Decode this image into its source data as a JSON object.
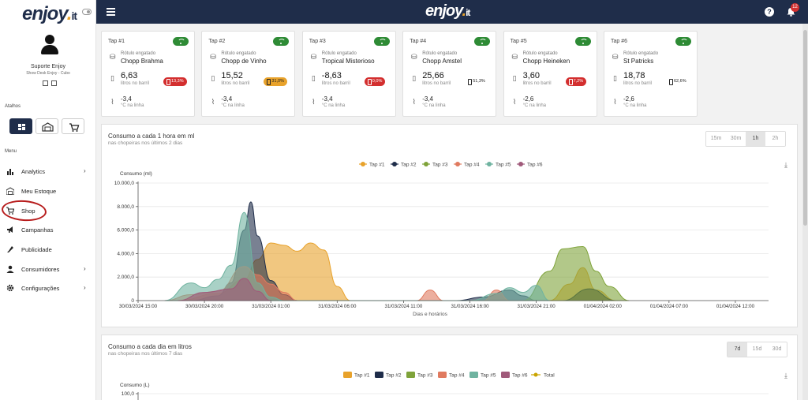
{
  "brand": {
    "logo": "enjoy",
    "logo_suffix": "it"
  },
  "sidebar": {
    "user_name": "Suporte Enjoy",
    "user_subtitle": "Show Desk Enjoy - Cubo",
    "shortcuts_title": "Atalhos",
    "menu_title": "Menu",
    "items": [
      {
        "label": "Analytics",
        "icon": "bar-chart-icon",
        "has_arrow": true
      },
      {
        "label": "Meu Estoque",
        "icon": "warehouse-icon",
        "has_arrow": false
      },
      {
        "label": "Shop",
        "icon": "cart-icon",
        "has_arrow": false
      },
      {
        "label": "Campanhas",
        "icon": "megaphone-icon",
        "has_arrow": false
      },
      {
        "label": "Publicidade",
        "icon": "rocket-icon",
        "has_arrow": false
      },
      {
        "label": "Consumidores",
        "icon": "person-icon",
        "has_arrow": true
      },
      {
        "label": "Configurações",
        "icon": "gear-icon",
        "has_arrow": true
      }
    ]
  },
  "topbar": {
    "notification_count": "12",
    "help_label": "?"
  },
  "taps": [
    {
      "title": "Tap #1",
      "rotulo_label": "Rótulo engatado",
      "beer": "Chopp Brahma",
      "barrel": "6,63",
      "barrel_unit": "litros no barril",
      "pct": "13,3%",
      "pct_style": "red",
      "temp": "-3,4",
      "temp_unit": "°C na linha"
    },
    {
      "title": "Tap #2",
      "rotulo_label": "Rótulo engatado",
      "beer": "Chopp de Vinho",
      "barrel": "15,52",
      "barrel_unit": "litros no barril",
      "pct": "31,0%",
      "pct_style": "orange",
      "temp": "-3,4",
      "temp_unit": "°C na linha"
    },
    {
      "title": "Tap #3",
      "rotulo_label": "Rótulo engatado",
      "beer": "Tropical Misterioso",
      "barrel": "-8,63",
      "barrel_unit": "litros no barril",
      "pct": "0,0%",
      "pct_style": "red",
      "temp": "-3,4",
      "temp_unit": "°C na linha"
    },
    {
      "title": "Tap #4",
      "rotulo_label": "Rótulo engatado",
      "beer": "Chopp Amstel",
      "barrel": "25,66",
      "barrel_unit": "litros no barril",
      "pct": "51,3%",
      "pct_style": "plain",
      "temp": "-3,4",
      "temp_unit": "°C na linha"
    },
    {
      "title": "Tap #5",
      "rotulo_label": "Rótulo engatado",
      "beer": "Chopp Heineken",
      "barrel": "3,60",
      "barrel_unit": "litros no barril",
      "pct": "7,2%",
      "pct_style": "red",
      "temp": "-2,6",
      "temp_unit": "°C na linha"
    },
    {
      "title": "Tap #6",
      "rotulo_label": "Rótulo engatado",
      "beer": "St Patricks",
      "barrel": "18,78",
      "barrel_unit": "litros no barril",
      "pct": "62,6%",
      "pct_style": "plain",
      "temp": "-2,6",
      "temp_unit": "°C na linha"
    }
  ],
  "hourly_card": {
    "title": "Consumo a cada 1 hora em ml",
    "subtitle": "nas chopeiras nos últimos 2 dias",
    "ranges": [
      "15m",
      "30m",
      "1h",
      "2h"
    ],
    "active_range": "1h"
  },
  "daily_card": {
    "title": "Consumo a cada dia em litros",
    "subtitle": "nas chopeiras nos últimos 7 dias",
    "ranges": [
      "7d",
      "15d",
      "30d"
    ],
    "active_range": "7d"
  },
  "chart_data": [
    {
      "type": "area",
      "ylabel": "Consumo (ml)",
      "xlabel": "Dias e horários",
      "ylim": [
        0,
        10000
      ],
      "yticks": [
        "0",
        "2.000,0",
        "4.000,0",
        "6.000,0",
        "8.000,0",
        "10.000,0"
      ],
      "xticks": [
        "30/03/2024 15:00",
        "30/03/2024 20:00",
        "31/03/2024 01:00",
        "31/03/2024 06:00",
        "31/03/2024 11:00",
        "31/03/2024 16:00",
        "31/03/2024 21:00",
        "01/04/2024 02:00",
        "01/04/2024 07:00",
        "01/04/2024 12:00"
      ],
      "x_hours": [
        15,
        20,
        25,
        30,
        35,
        40,
        45,
        50,
        55,
        60
      ],
      "legend_position": "top-center",
      "grid": true,
      "series": [
        {
          "name": "Tap #1",
          "color": "#e8a22b",
          "points": [
            [
              18,
              0
            ],
            [
              21,
              600
            ],
            [
              23,
              1800
            ],
            [
              24,
              3500
            ],
            [
              25,
              4900
            ],
            [
              26,
              4700
            ],
            [
              27,
              4200
            ],
            [
              28,
              4900
            ],
            [
              29,
              4300
            ],
            [
              30,
              1200
            ],
            [
              31,
              0
            ],
            [
              46,
              0
            ],
            [
              47.5,
              1400
            ],
            [
              48.5,
              2800
            ],
            [
              49.5,
              900
            ],
            [
              51,
              0
            ]
          ]
        },
        {
          "name": "Tap #2",
          "color": "#1f2d4a",
          "points": [
            [
              19,
              0
            ],
            [
              21,
              400
            ],
            [
              22,
              1500
            ],
            [
              23,
              6000
            ],
            [
              23.5,
              8400
            ],
            [
              24,
              5500
            ],
            [
              25,
              1700
            ],
            [
              26,
              500
            ],
            [
              27,
              0
            ],
            [
              39,
              0
            ],
            [
              41,
              300
            ],
            [
              43,
              900
            ],
            [
              44,
              400
            ],
            [
              45,
              0
            ],
            [
              47,
              0
            ],
            [
              49,
              1000
            ],
            [
              51,
              0
            ]
          ]
        },
        {
          "name": "Tap #3",
          "color": "#7fa33a",
          "points": [
            [
              44,
              0
            ],
            [
              46,
              2500
            ],
            [
              47,
              4400
            ],
            [
              48.5,
              4600
            ],
            [
              49.5,
              2500
            ],
            [
              50.5,
              1200
            ],
            [
              52,
              0
            ]
          ]
        },
        {
          "name": "Tap #4",
          "color": "#e07a5f",
          "points": [
            [
              17,
              0
            ],
            [
              19,
              500
            ],
            [
              21,
              800
            ],
            [
              23,
              2900
            ],
            [
              24,
              2200
            ],
            [
              25,
              1400
            ],
            [
              26,
              700
            ],
            [
              27,
              0
            ],
            [
              36,
              0
            ],
            [
              37,
              900
            ],
            [
              38,
              0
            ],
            [
              41,
              0
            ],
            [
              42,
              900
            ],
            [
              43,
              0
            ]
          ]
        },
        {
          "name": "Tap #5",
          "color": "#6fb3a0",
          "points": [
            [
              17,
              0
            ],
            [
              19,
              1500
            ],
            [
              20,
              1100
            ],
            [
              21,
              1800
            ],
            [
              22,
              3000
            ],
            [
              23,
              7500
            ],
            [
              24,
              1500
            ],
            [
              25,
              300
            ],
            [
              26,
              0
            ],
            [
              40,
              0
            ],
            [
              42,
              600
            ],
            [
              43,
              1100
            ],
            [
              44,
              700
            ],
            [
              45,
              1300
            ],
            [
              46,
              0
            ]
          ]
        },
        {
          "name": "Tap #6",
          "color": "#a05a7a",
          "points": [
            [
              18,
              0
            ],
            [
              20,
              700
            ],
            [
              22,
              1000
            ],
            [
              23,
              1900
            ],
            [
              24,
              800
            ],
            [
              25,
              0
            ]
          ]
        }
      ]
    },
    {
      "type": "bar",
      "ylabel": "Consumo (L)",
      "ylim": [
        0,
        100
      ],
      "yticks": [
        "100,0"
      ],
      "legend_position": "top-center",
      "series": [
        {
          "name": "Tap #1",
          "color": "#e8a22b"
        },
        {
          "name": "Tap #2",
          "color": "#1f2d4a"
        },
        {
          "name": "Tap #3",
          "color": "#7fa33a"
        },
        {
          "name": "Tap #4",
          "color": "#e07a5f"
        },
        {
          "name": "Tap #5",
          "color": "#6fb3a0"
        },
        {
          "name": "Tap #6",
          "color": "#a05a7a"
        },
        {
          "name": "Total",
          "color": "#c9a400"
        }
      ]
    }
  ]
}
